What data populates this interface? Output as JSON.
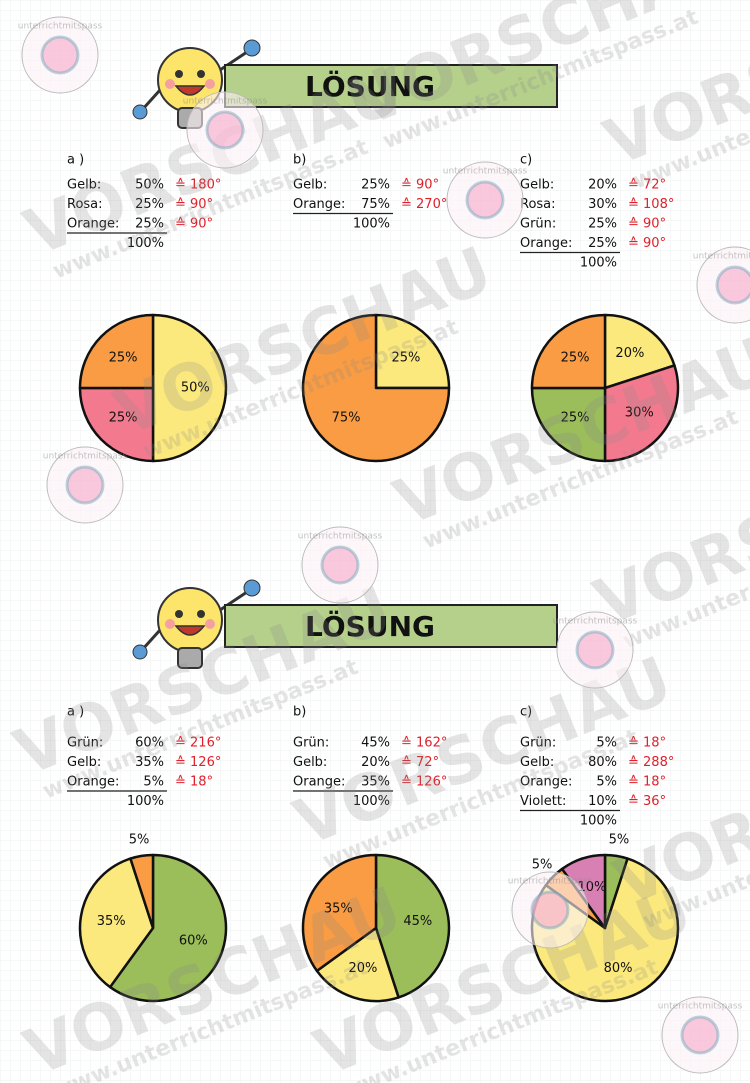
{
  "watermark": {
    "title": "VORSCHAU",
    "url": "www.unterrichtmitspass.at",
    "logo": "unterrichtmitspass"
  },
  "sections": [
    {
      "title": "LÖSUNG",
      "parts": [
        {
          "label": "a )",
          "rows": [
            [
              "Gelb:",
              "50%",
              "≙ 180°"
            ],
            [
              "Rosa:",
              "25%",
              "≙ 90°"
            ],
            [
              "Orange:",
              "25%",
              "≙ 90°"
            ]
          ],
          "total": "100%",
          "pie": {
            "values": [
              50,
              25,
              25
            ],
            "value_labels": [
              "50%",
              "25%",
              "25%"
            ],
            "colors": [
              "#fbe97d",
              "#f37a8e",
              "#f99c43"
            ]
          }
        },
        {
          "label": "b)",
          "rows": [
            [
              "Gelb:",
              "25%",
              "≙ 90°"
            ],
            [
              "Orange:",
              "75%",
              "≙ 270°"
            ]
          ],
          "total": "100%",
          "pie": {
            "values": [
              25,
              75
            ],
            "value_labels": [
              "25%",
              "75%"
            ],
            "colors": [
              "#fbe97d",
              "#f99c43"
            ]
          }
        },
        {
          "label": "c)",
          "rows": [
            [
              "Gelb:",
              "20%",
              "≙ 72°"
            ],
            [
              "Rosa:",
              "30%",
              "≙ 108°"
            ],
            [
              "Grün:",
              "25%",
              "≙ 90°"
            ],
            [
              "Orange:",
              "25%",
              "≙ 90°"
            ]
          ],
          "total": "100%",
          "pie": {
            "values": [
              20,
              30,
              25,
              25
            ],
            "value_labels": [
              "20%",
              "30%",
              "25%",
              "25%"
            ],
            "colors": [
              "#fbe97d",
              "#f37a8e",
              "#9bbe5b",
              "#f99c43"
            ]
          }
        }
      ]
    },
    {
      "title": "LÖSUNG",
      "parts": [
        {
          "label": "a )",
          "rows": [
            [
              "Grün:",
              "60%",
              "≙ 216°"
            ],
            [
              "Gelb:",
              "35%",
              "≙ 126°"
            ],
            [
              "Orange:",
              "5%",
              "≙ 18°"
            ]
          ],
          "total": "100%",
          "pie": {
            "values": [
              60,
              35,
              5
            ],
            "value_labels": [
              "60%",
              "35%",
              "5%"
            ],
            "colors": [
              "#9bbe5b",
              "#fbe97d",
              "#f99c43"
            ]
          }
        },
        {
          "label": "b)",
          "rows": [
            [
              "Grün:",
              "45%",
              "≙ 162°"
            ],
            [
              "Gelb:",
              "20%",
              "≙ 72°"
            ],
            [
              "Orange:",
              "35%",
              "≙ 126°"
            ]
          ],
          "total": "100%",
          "pie": {
            "values": [
              45,
              20,
              35
            ],
            "value_labels": [
              "45%",
              "20%",
              "35%"
            ],
            "colors": [
              "#9bbe5b",
              "#fbe97d",
              "#f99c43"
            ]
          }
        },
        {
          "label": "c)",
          "rows": [
            [
              "Grün:",
              "5%",
              "≙ 18°"
            ],
            [
              "Gelb:",
              "80%",
              "≙ 288°"
            ],
            [
              "Orange:",
              "5%",
              "≙ 18°"
            ],
            [
              "Violett:",
              "10%",
              "≙ 36°"
            ]
          ],
          "total": "100%",
          "pie": {
            "values": [
              5,
              80,
              5,
              10
            ],
            "value_labels": [
              "5%",
              "80%",
              "5%",
              "10%"
            ],
            "colors": [
              "#9bbe5b",
              "#fbe97d",
              "#f99c43",
              "#d87fb3"
            ]
          }
        }
      ]
    }
  ]
}
